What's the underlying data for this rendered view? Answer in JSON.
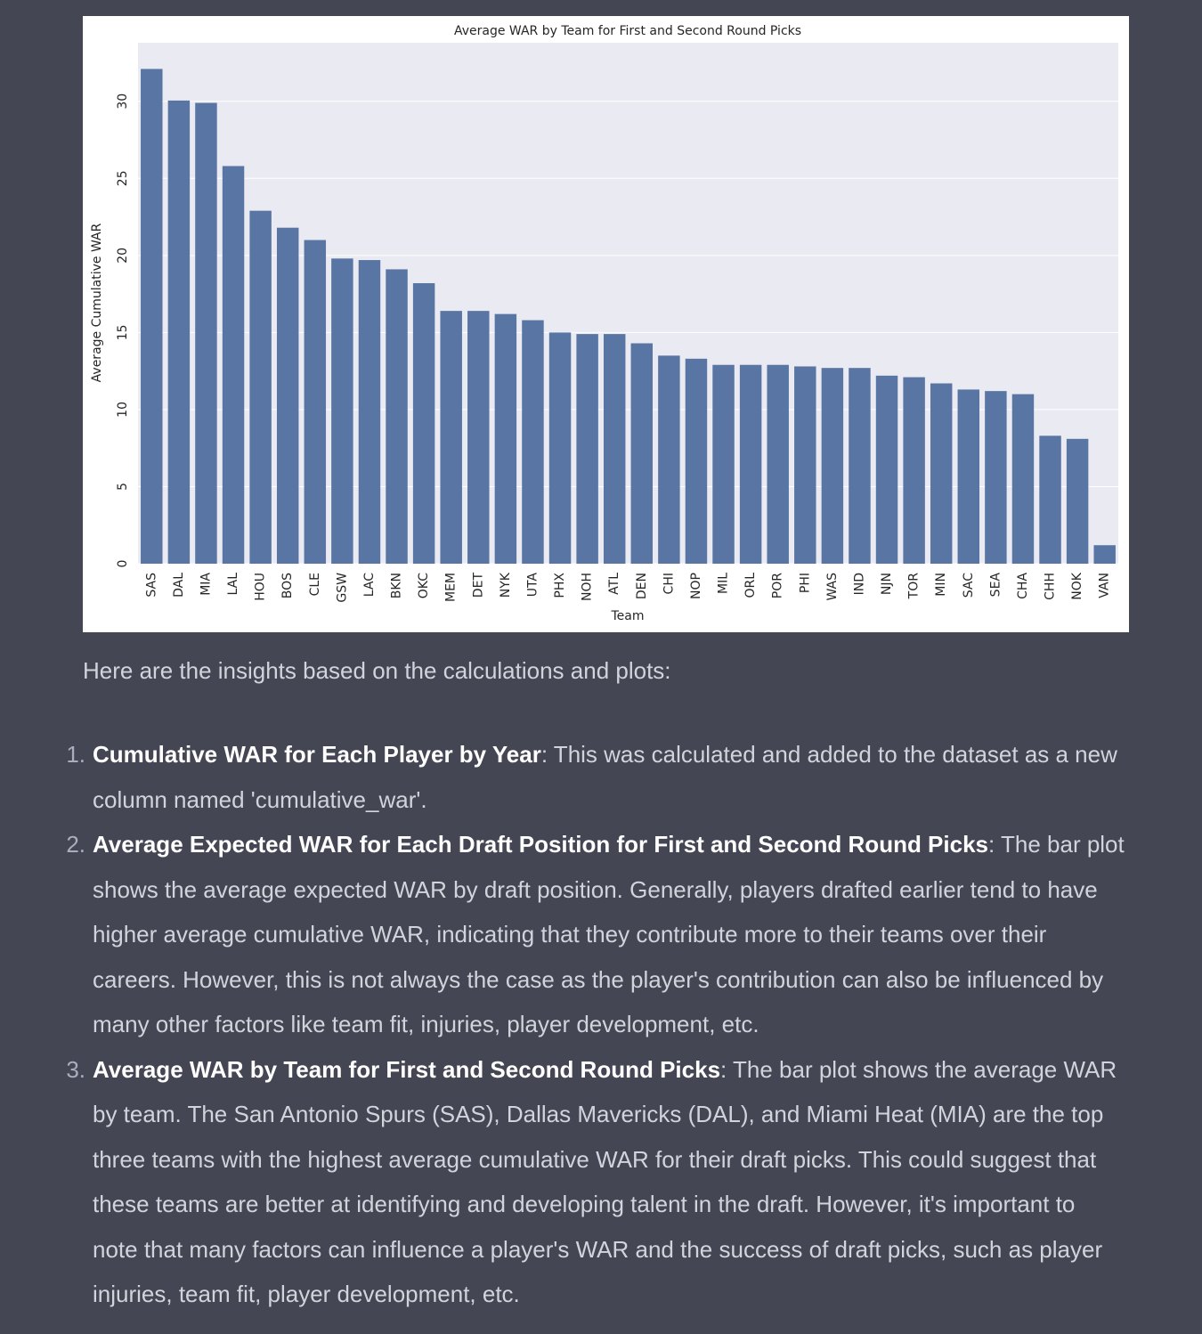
{
  "chart_data": {
    "type": "bar",
    "title": "Average WAR by Team for First and Second Round Picks",
    "xlabel": "Team",
    "ylabel": "Average Cumulative WAR",
    "categories": [
      "SAS",
      "DAL",
      "MIA",
      "LAL",
      "HOU",
      "BOS",
      "CLE",
      "GSW",
      "LAC",
      "BKN",
      "OKC",
      "MEM",
      "DET",
      "NYK",
      "UTA",
      "PHX",
      "NOH",
      "ATL",
      "DEN",
      "CHI",
      "NOP",
      "MIL",
      "ORL",
      "POR",
      "PHI",
      "WAS",
      "IND",
      "NJN",
      "TOR",
      "MIN",
      "SAC",
      "SEA",
      "CHA",
      "CHH",
      "NOK",
      "VAN"
    ],
    "values": [
      32.1,
      30.05,
      29.9,
      25.8,
      22.9,
      21.8,
      21.0,
      19.8,
      19.7,
      19.1,
      18.2,
      16.4,
      16.4,
      16.2,
      15.8,
      15.0,
      14.9,
      14.9,
      14.3,
      13.5,
      13.3,
      12.9,
      12.9,
      12.9,
      12.8,
      12.7,
      12.7,
      12.2,
      12.1,
      11.7,
      11.3,
      11.2,
      11.0,
      8.3,
      8.1,
      1.2
    ],
    "color": "#5975a4",
    "ylim": [
      0,
      33.8
    ],
    "yticks": [
      0,
      5,
      10,
      15,
      20,
      25,
      30
    ],
    "grid": true
  },
  "intro": "Here are the insights based on the calculations and plots:",
  "list": [
    {
      "number": "1.",
      "title": "Cumulative WAR for Each Player by Year",
      "text": ": This was calculated and added to the dataset as a new column named 'cumulative_war'."
    },
    {
      "number": "2.",
      "title": "Average Expected WAR for Each Draft Position for First and Second Round Picks",
      "text": ": The bar plot shows the average expected WAR by draft position. Generally, players drafted earlier tend to have higher average cumulative WAR, indicating that they contribute more to their teams over their careers. However, this is not always the case as the player's contribution can also be influenced by many other factors like team fit, injuries, player development, etc."
    },
    {
      "number": "3.",
      "title": "Average WAR by Team for First and Second Round Picks",
      "text": ": The bar plot shows the average WAR by team. The San Antonio Spurs (SAS), Dallas Mavericks (DAL), and Miami Heat (MIA) are the top three teams with the highest average cumulative WAR for their draft picks. This could suggest that these teams are better at identifying and developing talent in the draft. However, it's important to note that many factors can influence a player's WAR and the success of draft picks, such as player injuries, team fit, player development, etc."
    }
  ]
}
